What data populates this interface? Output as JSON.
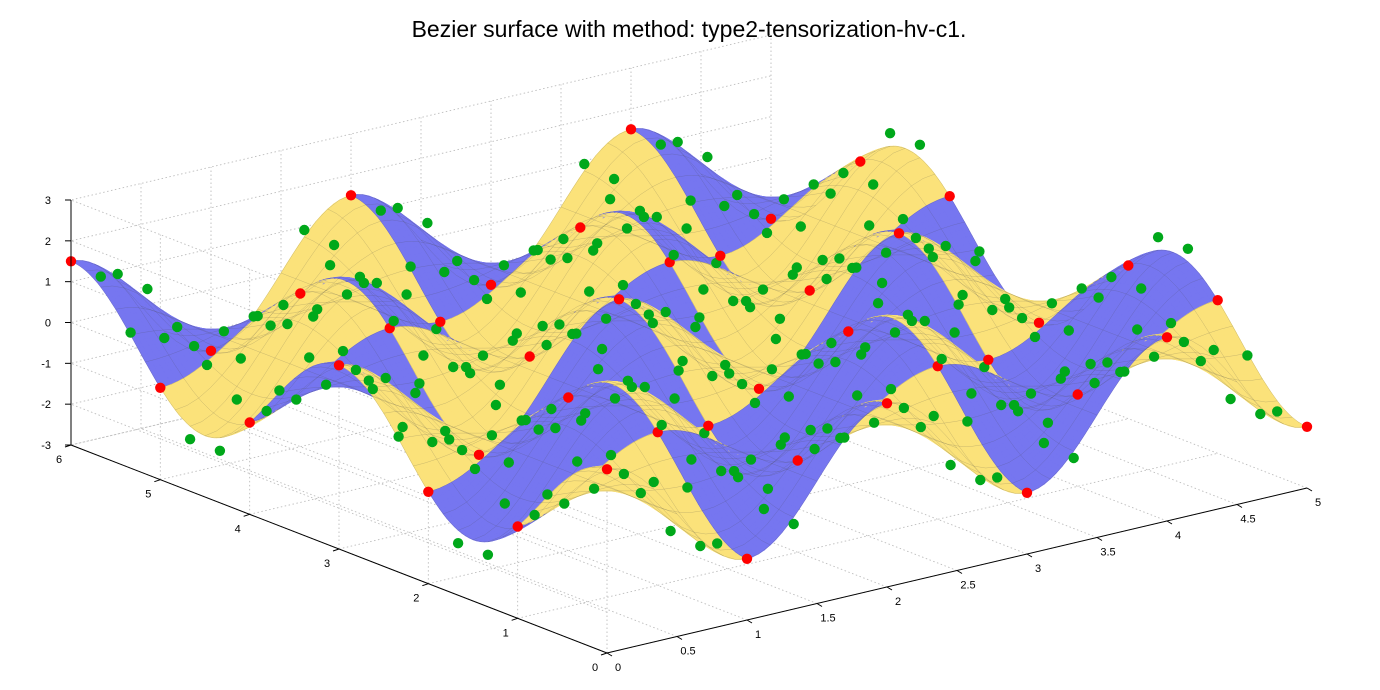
{
  "chart_data": {
    "type": "surface3d",
    "title": "Bezier surface with method: type2-tensorization-hv-c1.",
    "xlim": [
      0,
      5
    ],
    "ylim": [
      0,
      6
    ],
    "zlim": [
      -3,
      3
    ],
    "x_ticks": [
      "0",
      "0.5",
      "1",
      "1.5",
      "2",
      "2.5",
      "3",
      "3.5",
      "4",
      "4.5",
      "5"
    ],
    "y_ticks": [
      "0",
      "1",
      "2",
      "3",
      "4",
      "5",
      "6"
    ],
    "z_ticks": [
      "-3",
      "-2",
      "-1",
      "0",
      "1",
      "2",
      "3"
    ],
    "x_tick_values": [
      0,
      0.5,
      1,
      1.5,
      2,
      2.5,
      3,
      3.5,
      4,
      4.5,
      5
    ],
    "y_tick_values": [
      0,
      1,
      2,
      3,
      4,
      5,
      6
    ],
    "z_tick_values": [
      -3,
      -2,
      -1,
      0,
      1,
      2,
      3
    ],
    "grid": true,
    "patch_colors": [
      "#fbe27a",
      "#7676f0"
    ],
    "control_point_colors": {
      "corner": "#ff0000",
      "interior": "#00a81a"
    },
    "surface_function": "z = 1.5*cos(pi*x) * cos(pi*y*2/3)",
    "patches": {
      "x_count": 5,
      "y_count": 6
    }
  }
}
